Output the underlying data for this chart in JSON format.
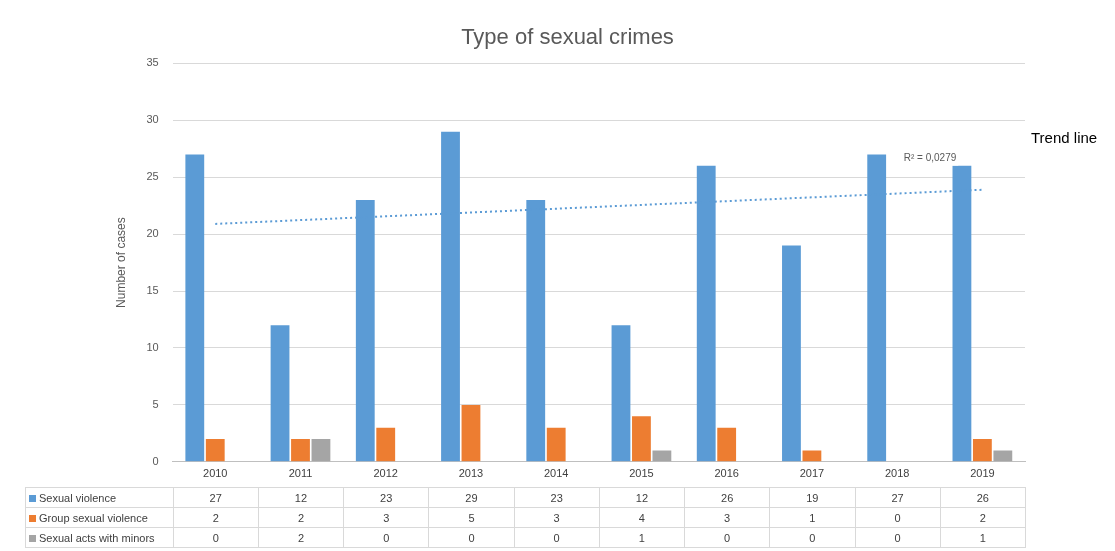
{
  "chart_data": {
    "type": "bar",
    "title": "Type of sexual crimes",
    "ylabel": "Number of cases",
    "categories": [
      "2010",
      "2011",
      "2012",
      "2013",
      "2014",
      "2015",
      "2016",
      "2017",
      "2018",
      "2019"
    ],
    "series": [
      {
        "name": "Sexual violence",
        "color": "#5b9bd5",
        "values": [
          27,
          12,
          23,
          29,
          23,
          12,
          26,
          19,
          27,
          26
        ],
        "value_labels": [
          "27",
          "12",
          "23",
          "29",
          "23",
          "12",
          "26",
          "19",
          "27",
          "26"
        ]
      },
      {
        "name": "Group sexual violence",
        "color": "#ed7d31",
        "values": [
          2,
          2,
          3,
          5,
          3,
          4,
          3,
          1,
          0,
          2
        ],
        "value_labels": [
          "2",
          "2",
          "3",
          "5",
          "3",
          "4",
          "3",
          "1",
          "0",
          "2"
        ]
      },
      {
        "name": "Sexual acts with minors",
        "color": "#a5a5a5",
        "values": [
          0,
          2,
          0,
          0,
          0,
          1,
          0,
          0,
          0,
          1
        ],
        "value_labels": [
          "0",
          "2",
          "0",
          "0",
          "0",
          "1",
          "0",
          "0",
          "0",
          "1"
        ]
      },
      {
        "type": "line",
        "color": "#5b9bd5",
        "line_style": "dotted",
        "marker": "none",
        "values": [
          20.9,
          null,
          null,
          null,
          null,
          null,
          null,
          null,
          null,
          23.9
        ]
      }
    ],
    "ylim": [
      0,
      35
    ],
    "yticks": [
      0,
      5,
      10,
      15,
      20,
      25,
      30,
      35
    ],
    "grid": "y",
    "legend": "bottom",
    "annotations": [
      "R² = 0,0279",
      "Trend line"
    ]
  }
}
